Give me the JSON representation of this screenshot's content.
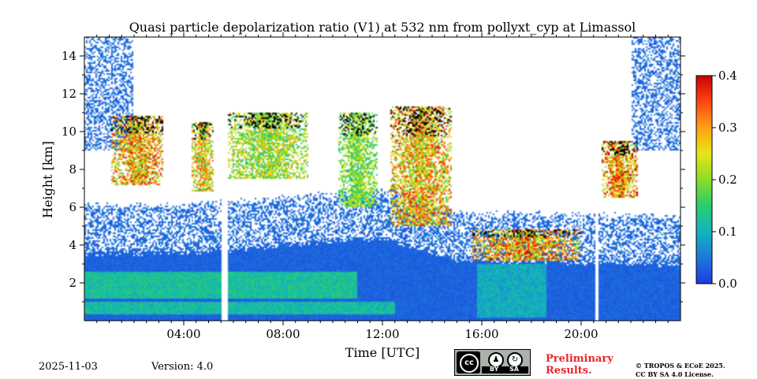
{
  "chart_data": {
    "type": "heatmap",
    "title": "Quasi particle depolarization ratio (V1) at 532 nm from pollyxt_cyp at Limassol",
    "xlabel": "Time [UTC]",
    "ylabel": "Height [km]",
    "xlim": [
      0,
      24
    ],
    "ylim": [
      0,
      15
    ],
    "x_ticks": [
      {
        "value": 4,
        "label": "04:00"
      },
      {
        "value": 8,
        "label": "08:00"
      },
      {
        "value": 12,
        "label": "12:00"
      },
      {
        "value": 16,
        "label": "16:00"
      },
      {
        "value": 20,
        "label": "20:00"
      }
    ],
    "y_ticks": [
      {
        "value": 2,
        "label": "2"
      },
      {
        "value": 4,
        "label": "4"
      },
      {
        "value": 6,
        "label": "6"
      },
      {
        "value": 8,
        "label": "8"
      },
      {
        "value": 10,
        "label": "10"
      },
      {
        "value": 12,
        "label": "12"
      },
      {
        "value": 14,
        "label": "14"
      }
    ],
    "colorbar": {
      "range": [
        0.0,
        0.4
      ],
      "ticks": [
        {
          "value": 0.0,
          "label": "0.0"
        },
        {
          "value": 0.1,
          "label": "0.1"
        },
        {
          "value": 0.2,
          "label": "0.2"
        },
        {
          "value": 0.3,
          "label": "0.3"
        },
        {
          "value": 0.4,
          "label": "0.4"
        }
      ],
      "colormap": [
        "#1a3ce0",
        "#1e78dc",
        "#12b4be",
        "#28cd6e",
        "#8cdc28",
        "#e6e614",
        "#ffa014",
        "#ff4614",
        "#c80000"
      ]
    },
    "data_gaps_hours": [
      [
        5.55,
        5.75
      ],
      [
        20.55,
        20.72
      ]
    ],
    "fields": {
      "boundary_layer": [
        {
          "time": 0,
          "top_km": 3.6,
          "value": 0.03
        },
        {
          "time": 4,
          "top_km": 3.6,
          "value": 0.03
        },
        {
          "time": 8,
          "top_km": 4.0,
          "value": 0.03
        },
        {
          "time": 12,
          "top_km": 4.4,
          "value": 0.03
        },
        {
          "time": 15,
          "top_km": 3.2,
          "value": 0.03
        },
        {
          "time": 24,
          "top_km": 3.0,
          "value": 0.03
        }
      ],
      "aerosol_layers": [
        {
          "t0": 0,
          "t1": 12.5,
          "bottom_km": 0.3,
          "top_km": 1.0,
          "value": 0.12
        },
        {
          "t0": 0,
          "t1": 11.0,
          "bottom_km": 1.2,
          "top_km": 2.6,
          "value": 0.13
        },
        {
          "t0": 15.8,
          "t1": 18.6,
          "bottom_km": 0.2,
          "top_km": 3.0,
          "value": 0.1
        }
      ],
      "clouds": [
        {
          "t0": 1.1,
          "t1": 3.2,
          "bottom_km": 7.2,
          "top_km": 10.8,
          "value": 0.33
        },
        {
          "t0": 4.3,
          "t1": 5.2,
          "bottom_km": 6.8,
          "top_km": 10.5,
          "value": 0.3
        },
        {
          "t0": 5.8,
          "t1": 9.0,
          "bottom_km": 7.5,
          "top_km": 11.0,
          "value": 0.25
        },
        {
          "t0": 10.2,
          "t1": 11.8,
          "bottom_km": 6.0,
          "top_km": 11.0,
          "value": 0.22
        },
        {
          "t0": 12.3,
          "t1": 14.8,
          "bottom_km": 5.0,
          "top_km": 11.3,
          "value": 0.32
        },
        {
          "t0": 15.6,
          "t1": 20.0,
          "bottom_km": 3.2,
          "top_km": 4.8,
          "value": 0.34
        },
        {
          "t0": 20.8,
          "t1": 22.3,
          "bottom_km": 6.5,
          "top_km": 9.5,
          "value": 0.35
        }
      ]
    },
    "no_data_color": "#ffffff",
    "cloud_mask_color": "#000000"
  },
  "footer": {
    "date": "2025-11-03",
    "version": "Version: 4.0",
    "license_badge": {
      "cc": "cc",
      "by": "BY",
      "sa": "SA"
    },
    "preliminary_line1": "Preliminary",
    "preliminary_line2": "Results.",
    "copyright_line1": "© TROPOS & ECoE 2025.",
    "copyright_line2": "CC BY SA 4.0 License."
  }
}
